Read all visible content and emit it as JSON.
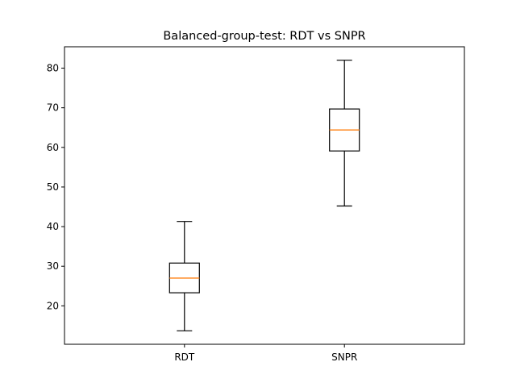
{
  "chart_data": {
    "type": "box",
    "title": "Balanced-group-test: RDT vs SNPR",
    "xlabel": "",
    "ylabel": "",
    "categories": [
      "RDT",
      "SNPR"
    ],
    "boxes": [
      {
        "name": "RDT",
        "whisker_low": 13.7,
        "q1": 23.3,
        "median": 27.0,
        "q3": 30.8,
        "whisker_high": 41.3
      },
      {
        "name": "SNPR",
        "whisker_low": 45.2,
        "q1": 59.1,
        "median": 64.4,
        "q3": 69.7,
        "whisker_high": 82.0
      }
    ],
    "ylim": [
      10.3,
      85.4
    ],
    "yticks": [
      20,
      30,
      40,
      50,
      60,
      70,
      80
    ],
    "grid": false,
    "colors": {
      "box": "#000000",
      "median": "#ff7f0e"
    }
  }
}
